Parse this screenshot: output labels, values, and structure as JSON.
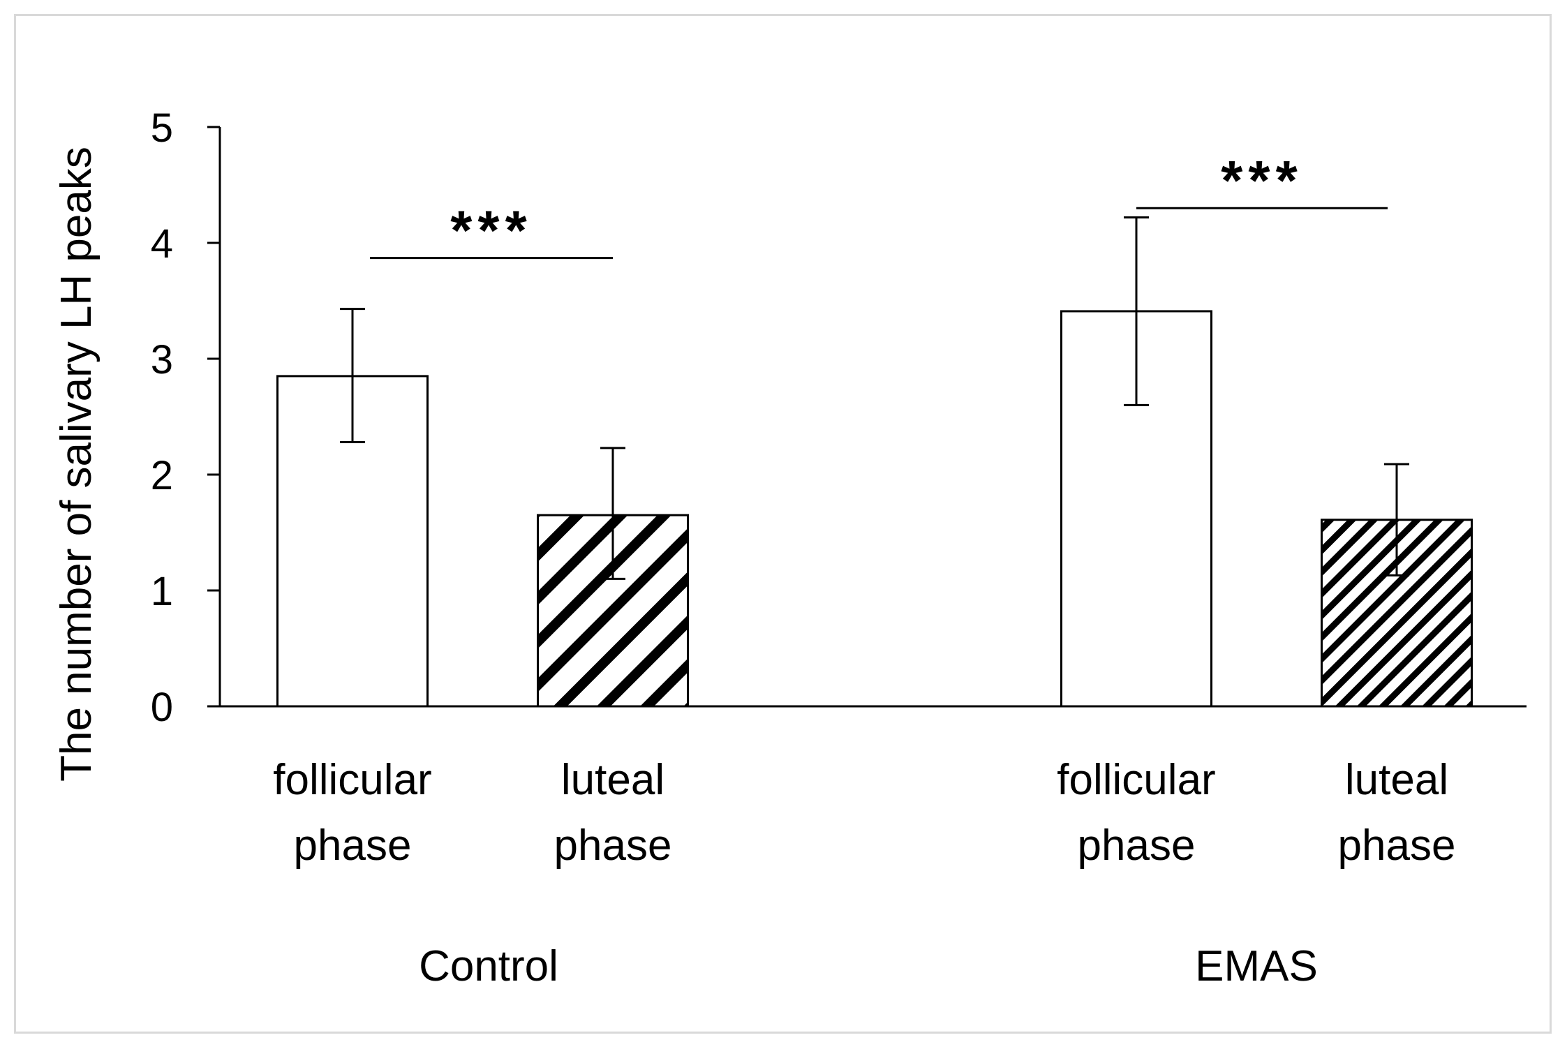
{
  "chart_data": {
    "type": "bar",
    "title": "",
    "xlabel": "",
    "ylabel": "The number of salivary LH peaks",
    "ylim": [
      0,
      5
    ],
    "yticks": [
      "0",
      "1",
      "2",
      "3",
      "4",
      "5"
    ],
    "grid": false,
    "groups": [
      {
        "name": "Control",
        "bars": [
          {
            "label_line1": "follicular",
            "label_line2": "phase",
            "value": 2.85,
            "err_low": 2.28,
            "err_high": 3.43,
            "pattern": "none"
          },
          {
            "label_line1": "luteal",
            "label_line2": "phase",
            "value": 1.65,
            "err_low": 1.1,
            "err_high": 2.23,
            "pattern": "wide-diagonal"
          }
        ],
        "significance": {
          "label": "***",
          "height": 3.87
        }
      },
      {
        "name": "EMAS",
        "bars": [
          {
            "label_line1": "follicular",
            "label_line2": "phase",
            "value": 3.41,
            "err_low": 2.6,
            "err_high": 4.22,
            "pattern": "none"
          },
          {
            "label_line1": "luteal",
            "label_line2": "phase",
            "value": 1.61,
            "err_low": 1.13,
            "err_high": 2.09,
            "pattern": "narrow-diagonal"
          }
        ],
        "significance": {
          "label": "***",
          "height": 4.3
        }
      }
    ]
  },
  "colors": {
    "bar_fill": "#ffffff",
    "stroke": "#000000",
    "frame": "#d9d9d9"
  }
}
